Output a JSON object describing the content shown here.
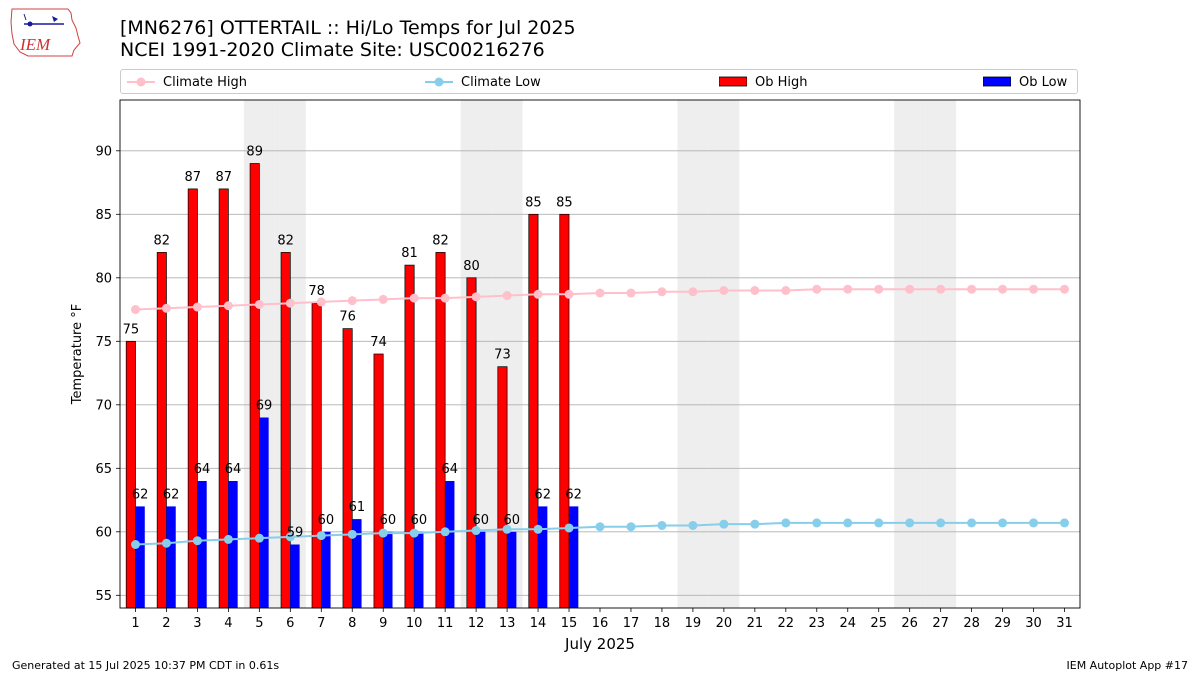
{
  "header": {
    "title_line1": "[MN6276] OTTERTAIL :: Hi/Lo Temps for Jul 2025",
    "title_line2": "NCEI 1991-2020 Climate Site: USC00216276",
    "logo_text": "IEM"
  },
  "legend": {
    "climate_high": "Climate High",
    "climate_low": "Climate Low",
    "ob_high": "Ob High",
    "ob_low": "Ob Low"
  },
  "footer": {
    "left": "Generated at 15 Jul 2025 10:37 PM CDT in 0.61s",
    "right": "IEM Autoplot App #17"
  },
  "colors": {
    "ob_high": "#ff0000",
    "ob_low": "#0000ff",
    "climate_high": "#ffc0cb",
    "climate_low": "#87ceeb",
    "weekend_shade": "#eeeeee",
    "grid": "#b0b0b0"
  },
  "chart_data": {
    "type": "bar",
    "xlabel": "July 2025",
    "ylabel": "Temperature °F",
    "ylim": [
      54,
      94
    ],
    "yticks": [
      55,
      60,
      65,
      70,
      75,
      80,
      85,
      90
    ],
    "grid": "horizontal",
    "legend_position": "top",
    "days": [
      1,
      2,
      3,
      4,
      5,
      6,
      7,
      8,
      9,
      10,
      11,
      12,
      13,
      14,
      15,
      16,
      17,
      18,
      19,
      20,
      21,
      22,
      23,
      24,
      25,
      26,
      27,
      28,
      29,
      30,
      31
    ],
    "shaded_days": [
      5,
      6,
      12,
      13,
      19,
      20,
      26,
      27
    ],
    "series": [
      {
        "name": "Ob High",
        "kind": "bar",
        "values": [
          75,
          82,
          87,
          87,
          89,
          82,
          78,
          76,
          74,
          81,
          82,
          80,
          73,
          85,
          85
        ]
      },
      {
        "name": "Ob Low",
        "kind": "bar",
        "values": [
          62,
          62,
          64,
          64,
          69,
          59,
          60,
          61,
          60,
          60,
          64,
          60,
          60,
          62,
          62
        ]
      },
      {
        "name": "Climate High",
        "kind": "line",
        "values": [
          77.5,
          77.6,
          77.7,
          77.8,
          77.9,
          78.0,
          78.1,
          78.2,
          78.3,
          78.4,
          78.4,
          78.5,
          78.6,
          78.7,
          78.7,
          78.8,
          78.8,
          78.9,
          78.9,
          79.0,
          79.0,
          79.0,
          79.1,
          79.1,
          79.1,
          79.1,
          79.1,
          79.1,
          79.1,
          79.1,
          79.1
        ]
      },
      {
        "name": "Climate Low",
        "kind": "line",
        "values": [
          59.0,
          59.1,
          59.3,
          59.4,
          59.5,
          59.6,
          59.7,
          59.8,
          59.9,
          59.9,
          60.0,
          60.1,
          60.2,
          60.2,
          60.3,
          60.4,
          60.4,
          60.5,
          60.5,
          60.6,
          60.6,
          60.7,
          60.7,
          60.7,
          60.7,
          60.7,
          60.7,
          60.7,
          60.7,
          60.7,
          60.7
        ]
      }
    ]
  }
}
